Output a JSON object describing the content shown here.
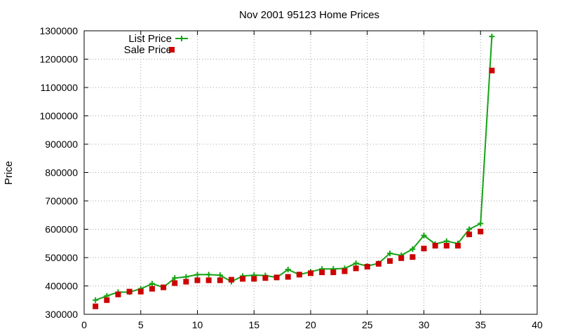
{
  "chart_data": {
    "type": "line",
    "title": "Nov 2001 95123 Home Prices",
    "xlabel": "",
    "ylabel": "Price",
    "xlim": [
      0,
      40
    ],
    "ylim": [
      300000,
      1300000
    ],
    "xticks": [
      0,
      5,
      10,
      15,
      20,
      25,
      30,
      35,
      40
    ],
    "yticks": [
      300000,
      400000,
      500000,
      600000,
      700000,
      800000,
      900000,
      1000000,
      1100000,
      1200000,
      1300000
    ],
    "grid": true,
    "legend_position": "top-left",
    "series": [
      {
        "name": "List Price",
        "style": "line-with-plus-markers",
        "color": "#13a313",
        "x": [
          1,
          2,
          3,
          4,
          5,
          6,
          7,
          8,
          9,
          10,
          11,
          12,
          13,
          14,
          15,
          16,
          17,
          18,
          19,
          20,
          21,
          22,
          23,
          24,
          25,
          26,
          27,
          28,
          29,
          30,
          31,
          32,
          33,
          34,
          35,
          36
        ],
        "values": [
          350000,
          365000,
          378000,
          378000,
          390000,
          408000,
          395000,
          428000,
          432000,
          440000,
          440000,
          438000,
          415000,
          435000,
          438000,
          437000,
          430000,
          458000,
          440000,
          450000,
          460000,
          460000,
          462000,
          480000,
          470000,
          480000,
          515000,
          508000,
          530000,
          578000,
          548000,
          558000,
          550000,
          600000,
          620000,
          1280000
        ]
      },
      {
        "name": "Sale Price",
        "style": "square-markers",
        "color": "#cc0000",
        "x": [
          1,
          2,
          3,
          4,
          5,
          6,
          7,
          8,
          9,
          10,
          11,
          12,
          13,
          14,
          15,
          16,
          17,
          18,
          19,
          20,
          21,
          22,
          23,
          24,
          25,
          26,
          27,
          28,
          29,
          30,
          31,
          32,
          33,
          34,
          35,
          36
        ],
        "values": [
          328000,
          350000,
          370000,
          380000,
          380000,
          390000,
          395000,
          410000,
          415000,
          420000,
          420000,
          420000,
          422000,
          425000,
          425000,
          428000,
          430000,
          432000,
          440000,
          445000,
          448000,
          448000,
          452000,
          462000,
          468000,
          478000,
          488000,
          498000,
          502000,
          532000,
          542000,
          542000,
          542000,
          582000,
          592000,
          1160000
        ]
      }
    ]
  }
}
